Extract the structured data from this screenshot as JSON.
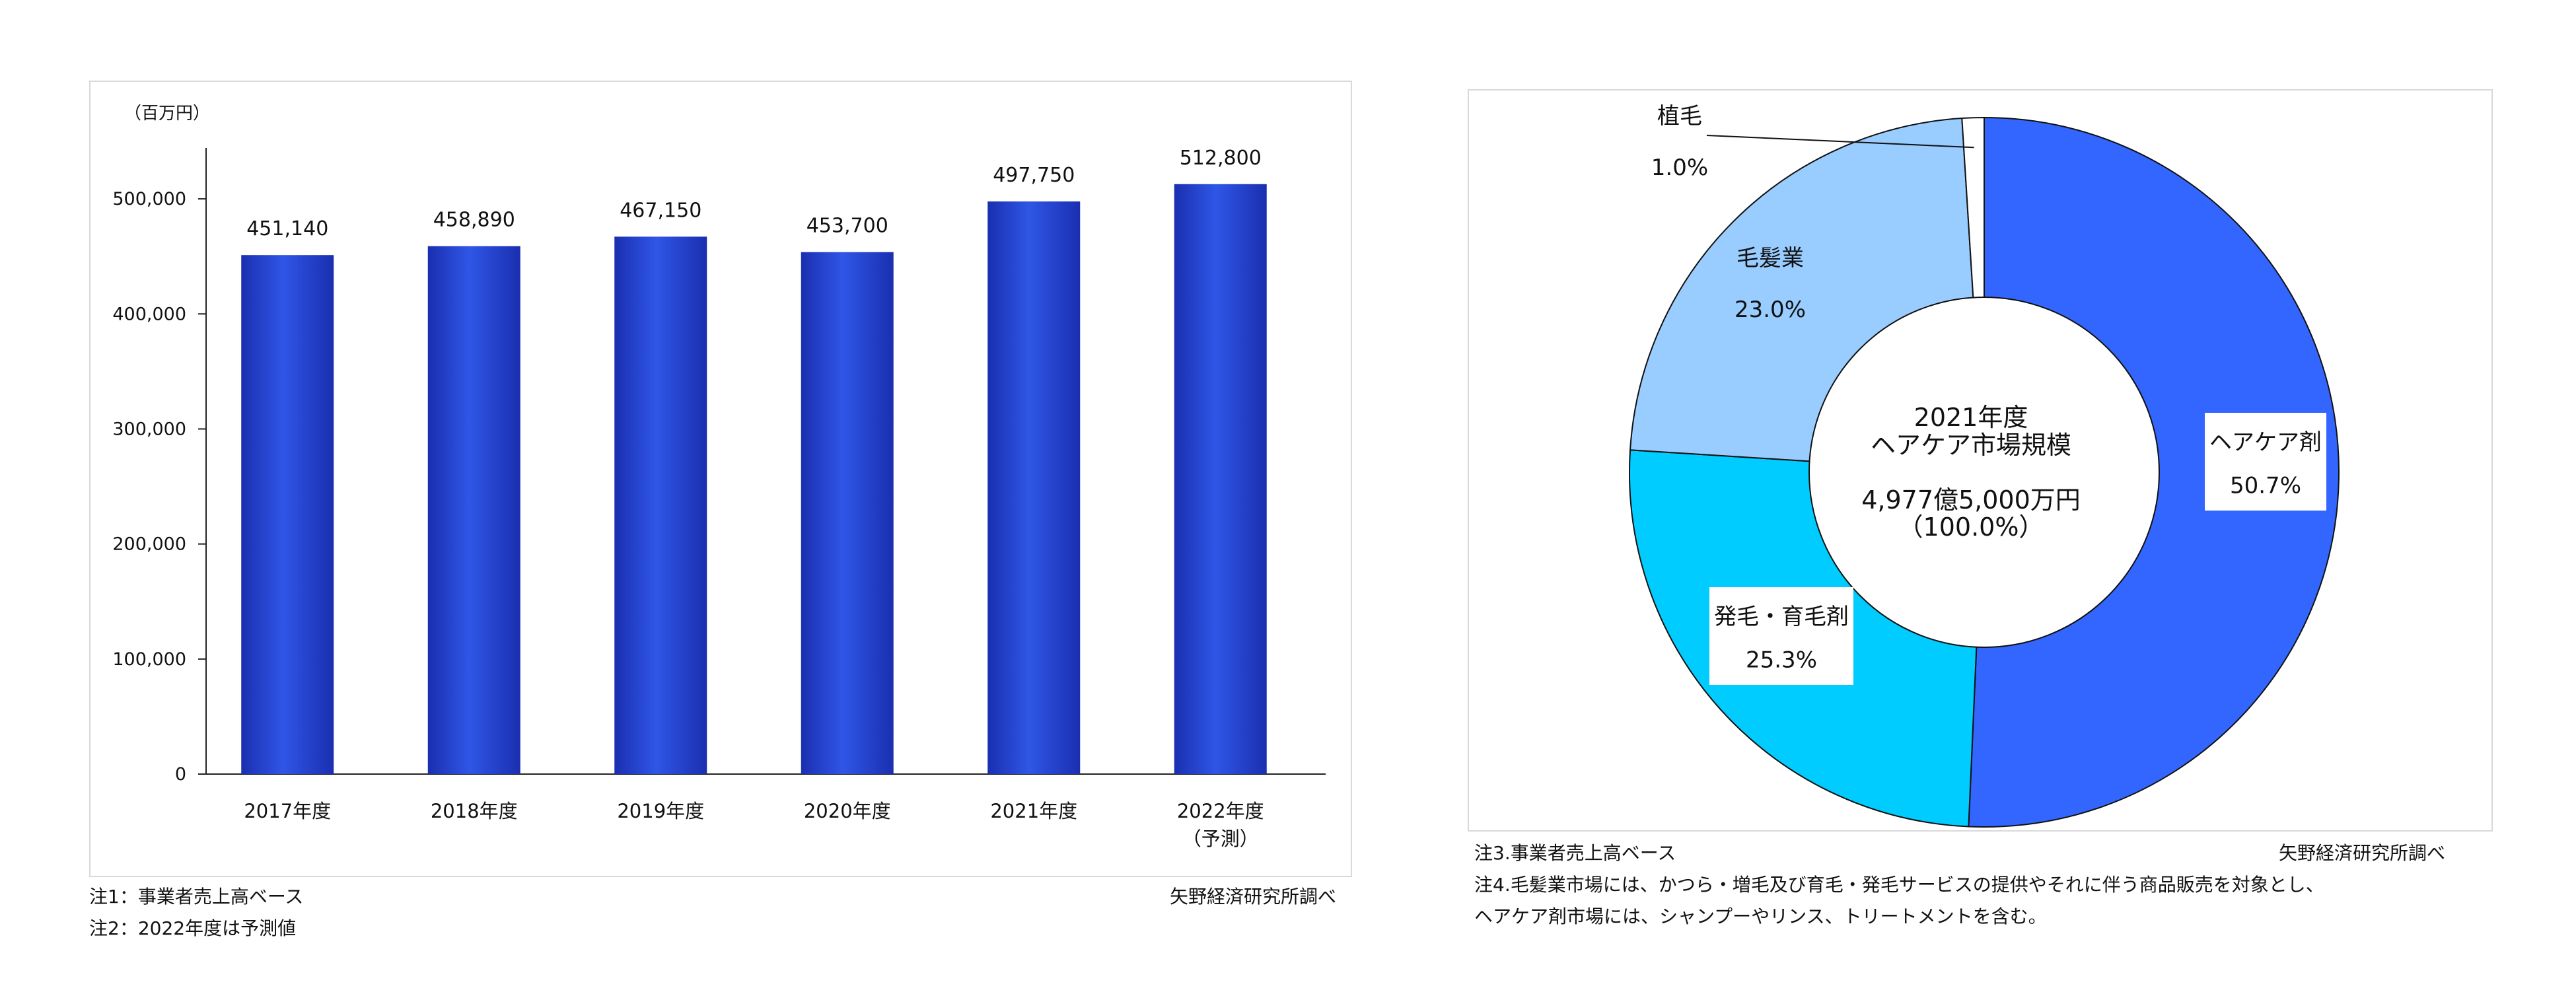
{
  "left_panel": {
    "notes": [
      "注1：事業者売上高ベース",
      "注2：2022年度は予測値"
    ],
    "source": "矢野経済研究所調べ"
  },
  "right_panel": {
    "notes": [
      "注3.事業者売上高ベース",
      "注4.毛髪業市場には、かつら・増毛及び育毛・発毛サービスの提供やそれに伴う商品販売を対象とし、",
      "ヘアケア剤市場には、シャンプーやリンス、トリートメントを含む。"
    ],
    "source": "矢野経済研究所調べ"
  },
  "chart_data": [
    {
      "type": "bar",
      "unit_label": "（百万円）",
      "categories": [
        "2017年度",
        "2018年度",
        "2019年度",
        "2020年度",
        "2021年度",
        "2022年度"
      ],
      "category_sublabels": [
        "",
        "",
        "",
        "",
        "",
        "（予測）"
      ],
      "values": [
        451140,
        458890,
        467150,
        453700,
        497750,
        512800
      ],
      "value_labels": [
        "451,140",
        "458,890",
        "467,150",
        "453,700",
        "497,750",
        "512,800"
      ],
      "yticks": [
        0,
        100000,
        200000,
        300000,
        400000,
        500000
      ],
      "ytick_labels": [
        "0",
        "100,000",
        "200,000",
        "300,000",
        "400,000",
        "500,000"
      ],
      "ylim": [
        0,
        550000
      ],
      "grid": false,
      "bar_color": "#2f56e6"
    },
    {
      "type": "pie",
      "donut": true,
      "center_label": [
        "2021年度",
        "ヘアケア市場規模",
        "4,977億5,000万円",
        "（100.0%）"
      ],
      "slices": [
        {
          "label": "ヘアケア剤",
          "value": 50.7,
          "value_label": "50.7%",
          "color": "#3366ff"
        },
        {
          "label": "発毛・育毛剤",
          "value": 25.3,
          "value_label": "25.3%",
          "color": "#00ccff"
        },
        {
          "label": "毛髪業",
          "value": 23.0,
          "value_label": "23.0%",
          "color": "#99ccff"
        },
        {
          "label": "植毛",
          "value": 1.0,
          "value_label": "1.0%",
          "color": "#ffffff"
        }
      ],
      "start_angle": "12 o'clock, clockwise"
    }
  ]
}
